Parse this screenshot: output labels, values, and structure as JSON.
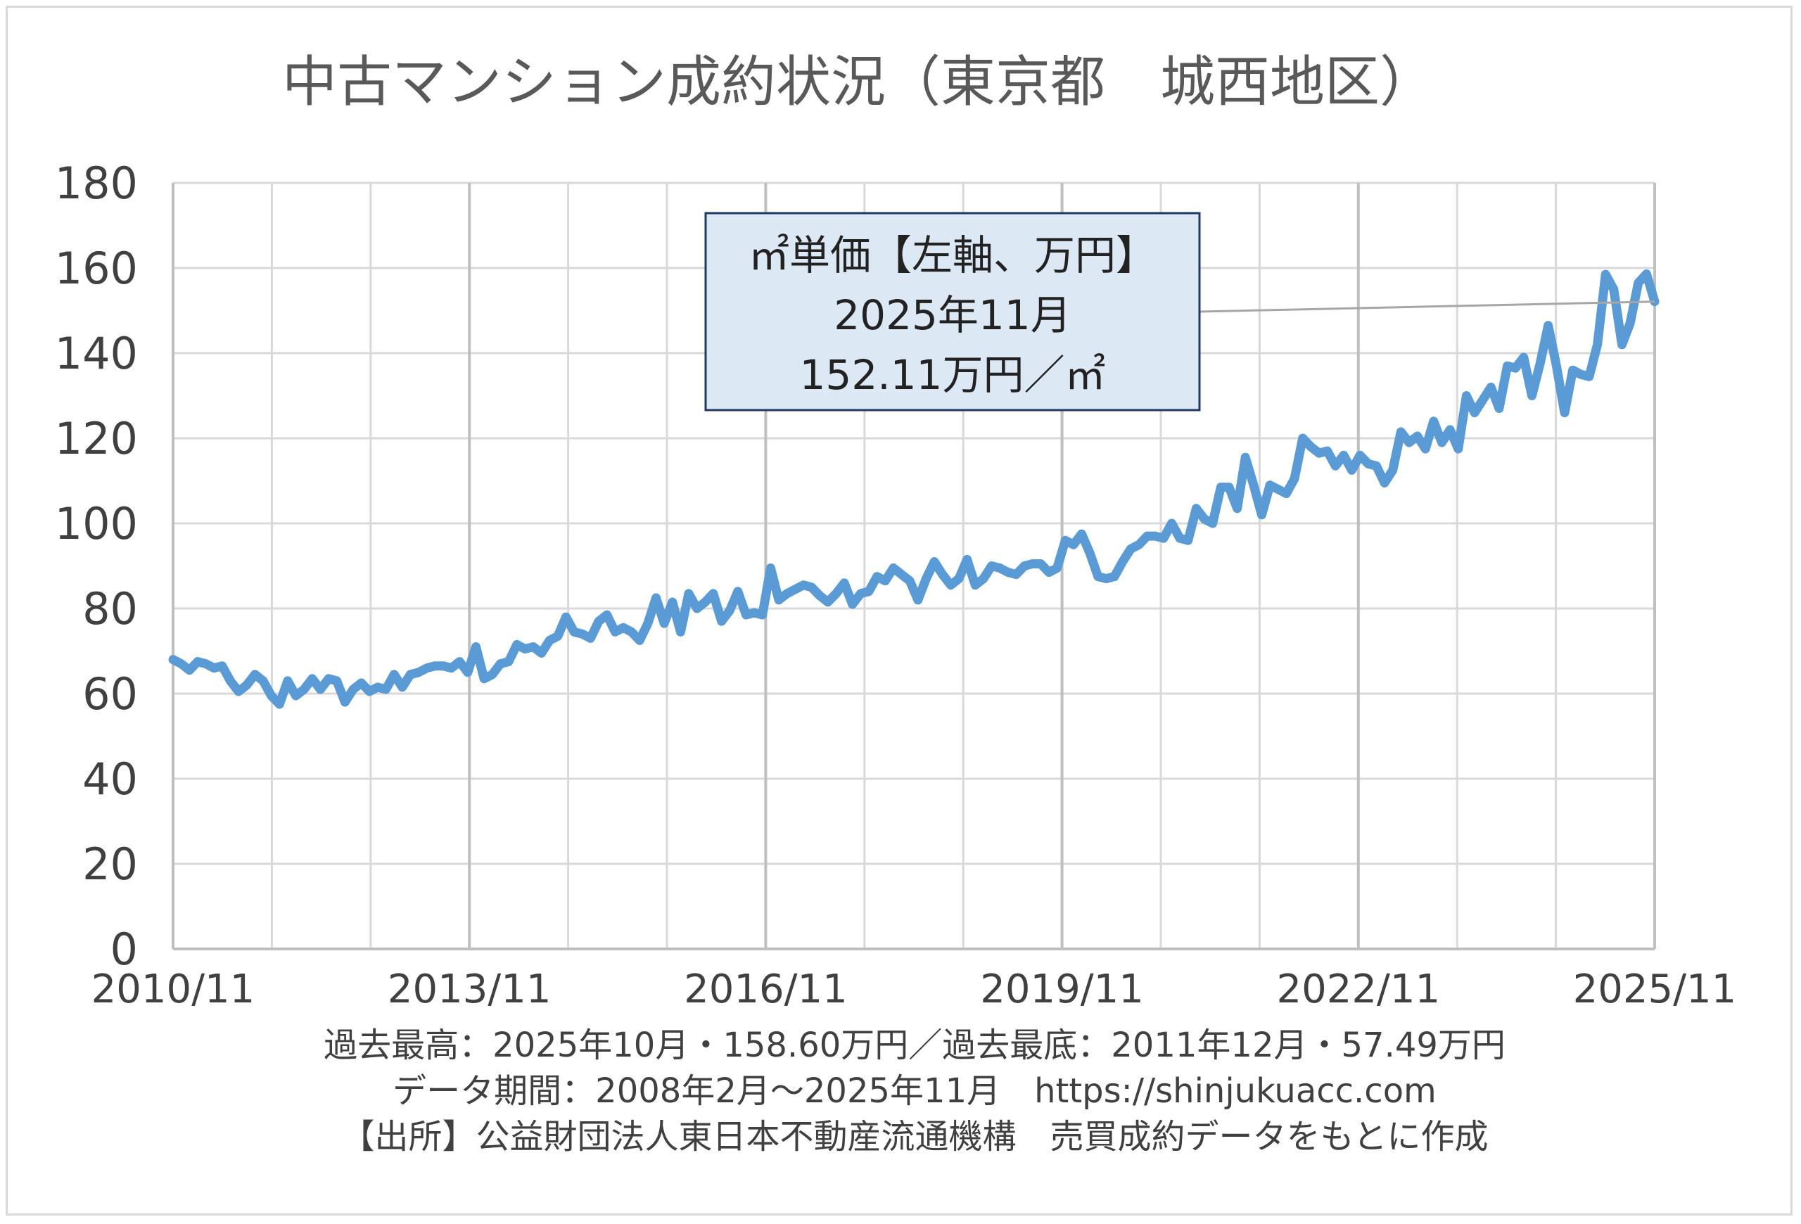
{
  "chart_data": {
    "type": "line",
    "title": "中古マンション成約状況（東京都　城西地区）",
    "ylim": [
      0,
      180
    ],
    "y_ticks": [
      "0",
      "20",
      "40",
      "60",
      "80",
      "100",
      "120",
      "140",
      "160",
      "180"
    ],
    "x_tick_labels": [
      "2010/11",
      "2013/11",
      "2016/11",
      "2019/11",
      "2022/11",
      "2025/11"
    ],
    "grid": true,
    "series": [
      {
        "color": "#5b9bd5",
        "x_start": "2010/11",
        "x_end": "2025/11",
        "values": [
          68.0,
          67.0,
          65.5,
          67.5,
          67.0,
          66.0,
          66.5,
          63.0,
          60.5,
          62.0,
          64.5,
          63.0,
          59.5,
          57.5,
          63.0,
          59.5,
          61.0,
          63.5,
          61.0,
          63.5,
          63.0,
          58.0,
          61.0,
          62.5,
          60.5,
          61.5,
          61.0,
          64.5,
          61.5,
          64.5,
          65.0,
          66.0,
          66.5,
          66.5,
          66.0,
          67.5,
          65.0,
          71.0,
          63.5,
          64.5,
          67.0,
          67.5,
          71.5,
          70.5,
          71.0,
          69.5,
          72.5,
          73.5,
          78.0,
          74.5,
          74.0,
          73.0,
          77.0,
          78.5,
          74.5,
          75.5,
          74.5,
          72.5,
          76.5,
          82.5,
          76.5,
          81.5,
          74.5,
          83.5,
          80.0,
          81.5,
          83.5,
          77.0,
          79.5,
          84.0,
          78.5,
          79.0,
          78.5,
          89.5,
          82.0,
          83.5,
          84.5,
          85.5,
          85.0,
          83.0,
          81.5,
          83.5,
          86.0,
          81.0,
          83.5,
          84.0,
          87.5,
          86.5,
          89.5,
          88.0,
          86.5,
          82.0,
          87.0,
          91.0,
          88.0,
          85.5,
          87.0,
          91.5,
          85.5,
          87.0,
          90.0,
          89.5,
          88.5,
          88.0,
          90.0,
          90.5,
          90.5,
          88.5,
          89.5,
          96.0,
          95.0,
          97.5,
          93.0,
          87.5,
          87.0,
          87.5,
          91.0,
          94.0,
          95.0,
          97.0,
          97.0,
          96.5,
          100.0,
          96.5,
          96.0,
          103.5,
          101.0,
          100.0,
          108.5,
          108.5,
          103.5,
          115.5,
          109.0,
          102.0,
          109.0,
          108.0,
          107.0,
          110.5,
          120.0,
          118.0,
          116.5,
          117.0,
          113.5,
          116.0,
          112.5,
          116.0,
          114.0,
          113.5,
          109.5,
          112.5,
          121.5,
          119.0,
          120.5,
          117.5,
          124.0,
          119.0,
          122.0,
          117.5,
          130.0,
          126.0,
          129.0,
          132.0,
          127.0,
          137.0,
          136.5,
          139.0,
          130.0,
          137.5,
          146.5,
          137.0,
          126.0,
          136.0,
          135.0,
          134.5,
          142.0,
          158.5,
          155.0,
          142.0,
          147.0,
          156.5,
          158.6,
          152.11
        ]
      }
    ],
    "annotation": {
      "line1": "㎡単価【左軸、万円】",
      "line2": "2025年11月",
      "line3": "152.11万円／㎡",
      "box_fill": "#dde8f5",
      "box_border": "#1f3864"
    }
  },
  "footer": {
    "line1": "過去最高：2025年10月・158.60万円／過去最底：2011年12月・57.49万円",
    "line2": "データ期間：2008年2月～2025年11月　https://shinjukuacc.com",
    "line3": "【出所】公益財団法人東日本不動産流通機構　売買成約データをもとに作成"
  }
}
